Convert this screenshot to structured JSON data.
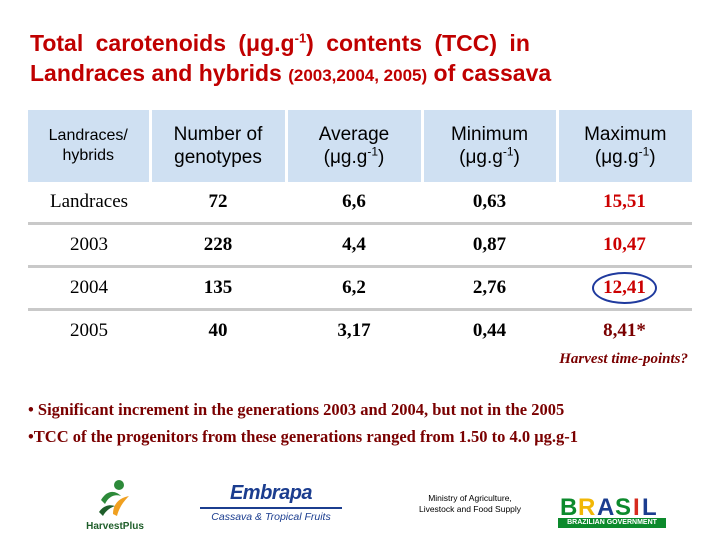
{
  "title": {
    "line1_a": "Total carotenoids (μg.g",
    "line1_sup": "-1",
    "line1_b": ") contents (TCC) in",
    "line2_a": "Landraces and hybrids ",
    "line2_years": "(2003,2004, 2005)",
    "line2_b": " of cassava"
  },
  "table": {
    "headers": [
      {
        "line1": "Landraces/",
        "line2": "hybrids"
      },
      {
        "line1": "Number of",
        "line2": "genotypes"
      },
      {
        "line1": "Average",
        "line2_a": "(μg.g",
        "line2_sup": "-1",
        "line2_b": ")"
      },
      {
        "line1": "Minimum",
        "line2_a": "(μg.g",
        "line2_sup": "-1",
        "line2_b": ")"
      },
      {
        "line1": "Maximum",
        "line2_a": "(μg.g",
        "line2_sup": "-1",
        "line2_b": ")"
      }
    ],
    "rows": [
      [
        "Landraces",
        "72",
        "6,6",
        "0,63",
        "15,51"
      ],
      [
        "2003",
        "228",
        "4,4",
        "0,87",
        "10,47"
      ],
      [
        "2004",
        "135",
        "6,2",
        "2,76",
        "12,41"
      ],
      [
        "2005",
        "40",
        "3,17",
        "0,44",
        "8,41*"
      ]
    ]
  },
  "note": "Harvest time-points?",
  "bullets": [
    "• Significant increment in the generations 2003 and 2004, but not in the 2005",
    "•TCC of the progenitors from these generations ranged from 1.50 to 4.0 μg.g-1"
  ],
  "logos": {
    "harvestplus": "HarvestPlus",
    "embrapa": "Embrapa",
    "embrapa_sub": "Cassava & Tropical Fruits",
    "ministry": "Ministry of Agriculture, Livestock and Food Supply",
    "brasil": "BRASIL",
    "brasil_bar": "BRAZILIAN GOVERNMENT"
  },
  "colors": {
    "title": "#c00000",
    "header_bg": "#cfe0f2",
    "highlight_red": "#cc0000",
    "bullet_text": "#7a0000",
    "circle": "#1f3a9e"
  }
}
